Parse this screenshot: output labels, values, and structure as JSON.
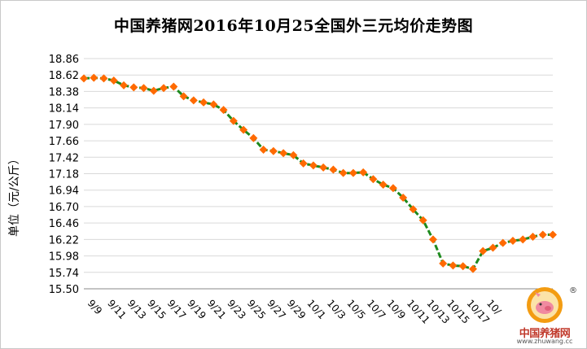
{
  "chart_data": {
    "type": "line",
    "title": "中国养猪网2016年10月25全国外三元均价走势图",
    "ylabel": "单位（元/公斤）",
    "ylim": [
      15.5,
      18.86
    ],
    "yticks": [
      "18.86",
      "18.62",
      "18.38",
      "18.14",
      "17.90",
      "17.66",
      "17.42",
      "17.18",
      "16.94",
      "16.70",
      "16.46",
      "16.22",
      "15.98",
      "15.74",
      "15.50"
    ],
    "x_tick_labels": [
      "9/9",
      "9/11",
      "9/13",
      "9/15",
      "9/17",
      "9/19",
      "9/21",
      "9/23",
      "9/25",
      "9/27",
      "9/29",
      "10/1",
      "10/3",
      "10/5",
      "10/7",
      "10/9",
      "10/11",
      "10/13",
      "10/15",
      "10/17",
      "10/"
    ],
    "grid": true,
    "series": [
      {
        "color": "#1e8a1e",
        "marker_color": "#ff6a00",
        "values": [
          18.57,
          18.58,
          18.57,
          18.54,
          18.47,
          18.44,
          18.43,
          18.39,
          18.43,
          18.45,
          18.31,
          18.25,
          18.22,
          18.19,
          18.11,
          17.95,
          17.82,
          17.7,
          17.53,
          17.51,
          17.48,
          17.45,
          17.33,
          17.3,
          17.27,
          17.24,
          17.19,
          17.19,
          17.2,
          17.1,
          17.02,
          16.97,
          16.83,
          16.66,
          16.5,
          16.22,
          15.87,
          15.84,
          15.83,
          15.79,
          16.05,
          16.1,
          16.17,
          16.2,
          16.22,
          16.26,
          16.29,
          16.29
        ]
      }
    ]
  },
  "watermark": {
    "name": "中国养猪网",
    "url": "www.zhuwang.cc",
    "registered_mark": "®"
  }
}
